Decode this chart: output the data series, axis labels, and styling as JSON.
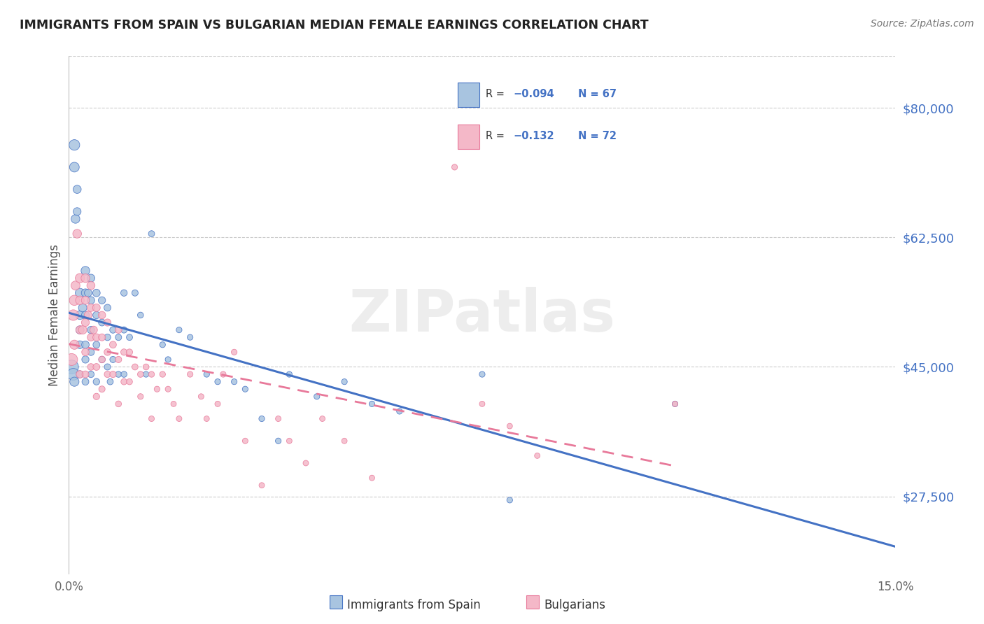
{
  "title": "IMMIGRANTS FROM SPAIN VS BULGARIAN MEDIAN FEMALE EARNINGS CORRELATION CHART",
  "source": "Source: ZipAtlas.com",
  "ylabel": "Median Female Earnings",
  "ytick_vals": [
    27500,
    45000,
    62500,
    80000
  ],
  "ytick_labels": [
    "$27,500",
    "$45,000",
    "$62,500",
    "$80,000"
  ],
  "xlim": [
    0.0,
    0.15
  ],
  "ylim": [
    17000,
    87000
  ],
  "legend_label1": "Immigrants from Spain",
  "legend_label2": "Bulgarians",
  "color_spain": "#a8c4e0",
  "color_bulgaria": "#f4b8c8",
  "line_color_spain": "#4472c4",
  "line_color_bulgaria": "#e8799a",
  "watermark": "ZIPatlas",
  "background_color": "#ffffff",
  "spain_x": [
    0.0005,
    0.0008,
    0.001,
    0.001,
    0.001,
    0.0012,
    0.0015,
    0.0015,
    0.002,
    0.002,
    0.002,
    0.002,
    0.002,
    0.0025,
    0.003,
    0.003,
    0.003,
    0.003,
    0.003,
    0.003,
    0.0035,
    0.004,
    0.004,
    0.004,
    0.004,
    0.004,
    0.005,
    0.005,
    0.005,
    0.005,
    0.006,
    0.006,
    0.006,
    0.007,
    0.007,
    0.007,
    0.0075,
    0.008,
    0.008,
    0.009,
    0.009,
    0.01,
    0.01,
    0.01,
    0.011,
    0.012,
    0.013,
    0.014,
    0.015,
    0.017,
    0.018,
    0.02,
    0.022,
    0.025,
    0.027,
    0.03,
    0.032,
    0.035,
    0.038,
    0.04,
    0.045,
    0.05,
    0.055,
    0.06,
    0.075,
    0.08,
    0.11
  ],
  "spain_y": [
    45000,
    44000,
    75000,
    72000,
    43000,
    65000,
    69000,
    66000,
    55000,
    52000,
    50000,
    48000,
    44000,
    53000,
    58000,
    55000,
    52000,
    48000,
    46000,
    43000,
    55000,
    57000,
    54000,
    50000,
    47000,
    44000,
    55000,
    52000,
    48000,
    43000,
    54000,
    51000,
    46000,
    53000,
    49000,
    45000,
    43000,
    50000,
    46000,
    49000,
    44000,
    55000,
    50000,
    44000,
    49000,
    55000,
    52000,
    44000,
    63000,
    48000,
    46000,
    50000,
    49000,
    44000,
    43000,
    43000,
    42000,
    38000,
    35000,
    44000,
    41000,
    43000,
    40000,
    39000,
    44000,
    27000,
    40000
  ],
  "spain_sizes": [
    200,
    150,
    120,
    100,
    90,
    80,
    70,
    65,
    90,
    80,
    70,
    65,
    55,
    75,
    80,
    70,
    65,
    60,
    55,
    50,
    60,
    65,
    60,
    55,
    50,
    45,
    60,
    55,
    50,
    45,
    55,
    50,
    45,
    50,
    45,
    42,
    40,
    45,
    42,
    42,
    38,
    45,
    42,
    38,
    40,
    42,
    38,
    35,
    40,
    35,
    35,
    35,
    35,
    35,
    35,
    35,
    35,
    35,
    35,
    35,
    35,
    35,
    35,
    35,
    35,
    35,
    35
  ],
  "bulgaria_x": [
    0.0005,
    0.0008,
    0.001,
    0.001,
    0.0012,
    0.0015,
    0.002,
    0.002,
    0.002,
    0.002,
    0.0025,
    0.003,
    0.003,
    0.003,
    0.003,
    0.003,
    0.0035,
    0.004,
    0.004,
    0.004,
    0.004,
    0.0045,
    0.005,
    0.005,
    0.005,
    0.005,
    0.006,
    0.006,
    0.006,
    0.006,
    0.007,
    0.007,
    0.007,
    0.008,
    0.008,
    0.009,
    0.009,
    0.009,
    0.01,
    0.01,
    0.011,
    0.011,
    0.012,
    0.013,
    0.013,
    0.014,
    0.015,
    0.015,
    0.016,
    0.017,
    0.018,
    0.019,
    0.02,
    0.022,
    0.024,
    0.025,
    0.027,
    0.028,
    0.03,
    0.032,
    0.035,
    0.038,
    0.04,
    0.043,
    0.046,
    0.05,
    0.055,
    0.07,
    0.075,
    0.08,
    0.085,
    0.11
  ],
  "bulgaria_y": [
    46000,
    52000,
    54000,
    48000,
    56000,
    63000,
    57000,
    54000,
    50000,
    44000,
    50000,
    57000,
    54000,
    51000,
    47000,
    44000,
    52000,
    56000,
    53000,
    49000,
    45000,
    50000,
    53000,
    49000,
    45000,
    41000,
    52000,
    49000,
    46000,
    42000,
    51000,
    47000,
    44000,
    48000,
    44000,
    50000,
    46000,
    40000,
    47000,
    43000,
    47000,
    43000,
    45000,
    44000,
    41000,
    45000,
    44000,
    38000,
    42000,
    44000,
    42000,
    40000,
    38000,
    44000,
    41000,
    38000,
    40000,
    44000,
    47000,
    35000,
    29000,
    38000,
    35000,
    32000,
    38000,
    35000,
    30000,
    72000,
    40000,
    37000,
    33000,
    40000
  ],
  "bulgaria_sizes": [
    150,
    120,
    110,
    90,
    85,
    80,
    90,
    80,
    70,
    60,
    75,
    80,
    70,
    65,
    58,
    50,
    65,
    70,
    62,
    57,
    48,
    60,
    62,
    56,
    50,
    44,
    58,
    52,
    47,
    42,
    54,
    48,
    43,
    50,
    44,
    48,
    43,
    38,
    44,
    40,
    42,
    38,
    40,
    38,
    35,
    38,
    36,
    33,
    35,
    36,
    34,
    32,
    33,
    35,
    33,
    32,
    33,
    35,
    35,
    33,
    32,
    33,
    32,
    32,
    32,
    32,
    32,
    35,
    32,
    32,
    32,
    32
  ]
}
